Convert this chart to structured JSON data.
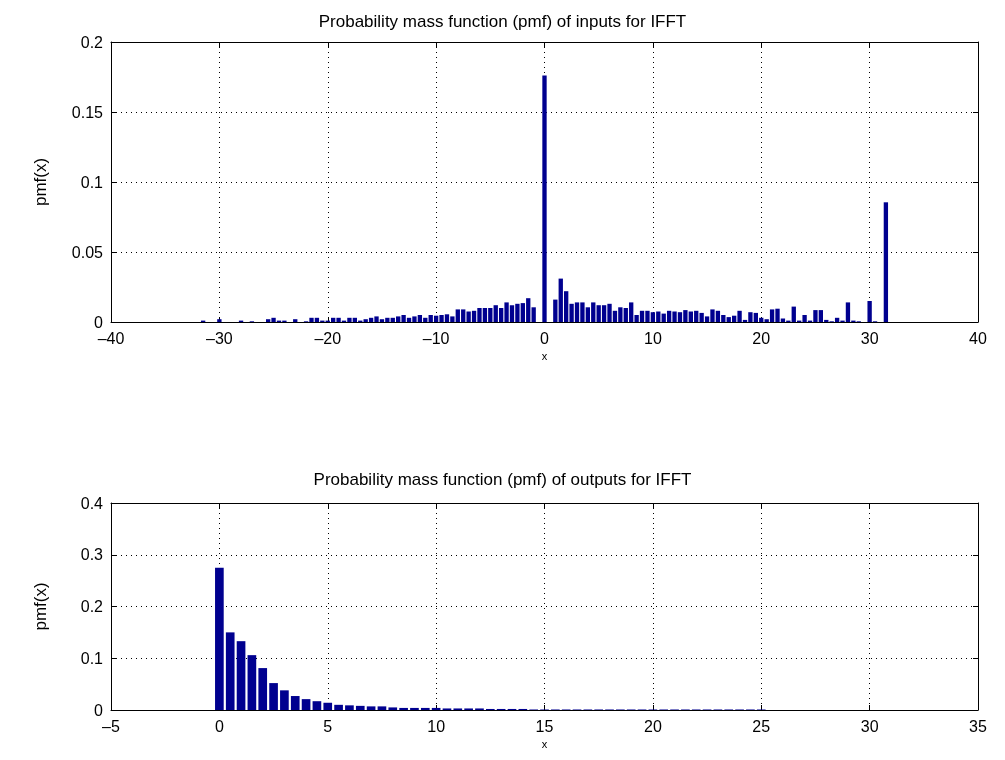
{
  "chart_data": [
    {
      "type": "bar",
      "title": "Probability mass function (pmf) of inputs for IFFT",
      "xlabel": "x",
      "ylabel": "pmf(x)",
      "color": "#00008f",
      "x": [
        -31.5,
        -31,
        -30.5,
        -30,
        -29.5,
        -29,
        -28.5,
        -28,
        -27.5,
        -27,
        -26.5,
        -26,
        -25.5,
        -25,
        -24.5,
        -24,
        -23.5,
        -23,
        -22.5,
        -22,
        -21.5,
        -21,
        -20.5,
        -20,
        -19.5,
        -19,
        -18.5,
        -18,
        -17.5,
        -17,
        -16.5,
        -16,
        -15.5,
        -15,
        -14.5,
        -14,
        -13.5,
        -13,
        -12.5,
        -12,
        -11.5,
        -11,
        -10.5,
        -10,
        -9.5,
        -9,
        -8.5,
        -8,
        -7.5,
        -7,
        -6.5,
        -6,
        -5.5,
        -5,
        -4.5,
        -4,
        -3.5,
        -3,
        -2.5,
        -2,
        -1.5,
        -1,
        -0.5,
        0,
        0.5,
        1,
        1.5,
        2,
        2.5,
        3,
        3.5,
        4,
        4.5,
        5,
        5.5,
        6,
        6.5,
        7,
        7.5,
        8,
        8.5,
        9,
        9.5,
        10,
        10.5,
        11,
        11.5,
        12,
        12.5,
        13,
        13.5,
        14,
        14.5,
        15,
        15.5,
        16,
        16.5,
        17,
        17.5,
        18,
        18.5,
        19,
        19.5,
        20,
        20.5,
        21,
        21.5,
        22,
        22.5,
        23,
        23.5,
        24,
        24.5,
        25,
        25.5,
        26,
        26.5,
        27,
        27.5,
        28,
        28.5,
        29,
        29.5,
        30,
        30.5,
        31,
        31.5
      ],
      "values": [
        0.001,
        0,
        0,
        0.002,
        0,
        0,
        0,
        0.001,
        0,
        0.0005,
        0,
        0,
        0.002,
        0.003,
        0.001,
        0.001,
        0,
        0.002,
        0,
        0.0005,
        0.003,
        0.003,
        0.001,
        0.001,
        0.003,
        0.003,
        0.001,
        0.003,
        0.003,
        0.001,
        0.002,
        0.003,
        0.004,
        0.002,
        0.003,
        0.003,
        0.004,
        0.005,
        0.003,
        0.004,
        0.005,
        0.003,
        0.005,
        0.0045,
        0.005,
        0.0055,
        0.004,
        0.009,
        0.009,
        0.0075,
        0.008,
        0.01,
        0.01,
        0.01,
        0.012,
        0.01,
        0.014,
        0.012,
        0.013,
        0.0135,
        0.017,
        0.0105,
        0,
        0.176,
        0,
        0.016,
        0.031,
        0.022,
        0.013,
        0.014,
        0.014,
        0.0105,
        0.014,
        0.012,
        0.012,
        0.013,
        0.008,
        0.0105,
        0.01,
        0.014,
        0.005,
        0.008,
        0.008,
        0.007,
        0.0075,
        0.006,
        0.008,
        0.0075,
        0.007,
        0.0085,
        0.0075,
        0.008,
        0.0065,
        0.004,
        0.009,
        0.008,
        0.005,
        0.0035,
        0.0045,
        0.008,
        0.0015,
        0.007,
        0.0065,
        0.003,
        0.002,
        0.009,
        0.0095,
        0.0025,
        0.001,
        0.011,
        0.001,
        0.005,
        0.001,
        0.0085,
        0.0085,
        0.0015,
        0.0005,
        0.003,
        0.001,
        0.014,
        0.001,
        0.0005,
        0,
        0.015,
        0.0005,
        0,
        0.0855
      ],
      "xlim": [
        -40,
        40
      ],
      "xticks": [
        {
          "value": -40,
          "label": "–40"
        },
        {
          "value": -30,
          "label": "–30"
        },
        {
          "value": -20,
          "label": "–20"
        },
        {
          "value": -10,
          "label": "–10"
        },
        0,
        10,
        20,
        30,
        40
      ],
      "ylim": [
        0,
        0.2
      ],
      "yticks": [
        0,
        0.05,
        0.1,
        0.15,
        0.2
      ],
      "grid": true
    },
    {
      "type": "bar",
      "title": "Probability mass function (pmf) of outputs for IFFT",
      "xlabel": "x",
      "ylabel": "pmf(x)",
      "color": "#00008f",
      "x": [
        0,
        0.5,
        1,
        1.5,
        2,
        2.5,
        3,
        3.5,
        4,
        4.5,
        5,
        5.5,
        6,
        6.5,
        7,
        7.5,
        8,
        8.5,
        9,
        9.5,
        10,
        10.5,
        11,
        11.5,
        12,
        12.5,
        13,
        13.5,
        14,
        14.5,
        15,
        15.5,
        16,
        16.5,
        17,
        17.5,
        18,
        18.5,
        19,
        19.5,
        20,
        20.5,
        21,
        21.5,
        22,
        22.5,
        23,
        23.5,
        24,
        24.5,
        25
      ],
      "values": [
        0.275,
        0.15,
        0.133,
        0.106,
        0.081,
        0.052,
        0.038,
        0.027,
        0.021,
        0.017,
        0.014,
        0.01,
        0.009,
        0.008,
        0.007,
        0.007,
        0.005,
        0.004,
        0.004,
        0.004,
        0.004,
        0.003,
        0.003,
        0.003,
        0.003,
        0.002,
        0.002,
        0.002,
        0.002,
        0.001,
        0.001,
        0.001,
        0.001,
        0.001,
        0.001,
        0.001,
        0.001,
        0.001,
        0.001,
        0.001,
        0.001,
        0.001,
        0.001,
        0.001,
        0.001,
        0.001,
        0.001,
        0.001,
        0.001,
        0.001,
        0.001
      ],
      "xlim": [
        -5,
        35
      ],
      "xticks": [
        {
          "value": -5,
          "label": "–5"
        },
        0,
        5,
        10,
        15,
        20,
        25,
        30,
        35
      ],
      "ylim": [
        0,
        0.4
      ],
      "yticks": [
        0,
        0.1,
        0.2,
        0.3,
        0.4
      ],
      "grid": true
    }
  ]
}
